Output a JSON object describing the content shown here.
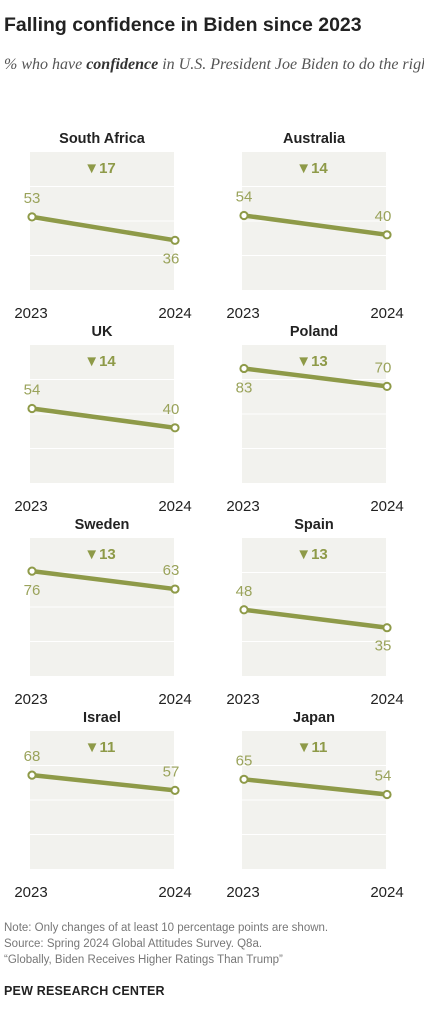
{
  "header": {
    "title": "Falling confidence in Biden since 2023",
    "subtitle_pre": "% who have ",
    "subtitle_bold": "confidence",
    "subtitle_post": " in U.S. President Joe Biden to do the right thing regarding world affairs"
  },
  "colors": {
    "line": "#8e9a48",
    "label": "#9aa35b",
    "change": "#8e9a48",
    "panel_bg": "#f2f2ee",
    "grid": "#ffffff"
  },
  "chart_data": [
    {
      "type": "line",
      "title": "South Africa",
      "x": [
        "2023",
        "2024"
      ],
      "values": [
        53,
        36
      ],
      "change": "▼17",
      "ylim": [
        0,
        100
      ]
    },
    {
      "type": "line",
      "title": "Australia",
      "x": [
        "2023",
        "2024"
      ],
      "values": [
        54,
        40
      ],
      "change": "▼14",
      "ylim": [
        0,
        100
      ]
    },
    {
      "type": "line",
      "title": "UK",
      "x": [
        "2023",
        "2024"
      ],
      "values": [
        54,
        40
      ],
      "change": "▼14",
      "ylim": [
        0,
        100
      ]
    },
    {
      "type": "line",
      "title": "Poland",
      "x": [
        "2023",
        "2024"
      ],
      "values": [
        83,
        70
      ],
      "change": "▼13",
      "ylim": [
        0,
        100
      ]
    },
    {
      "type": "line",
      "title": "Sweden",
      "x": [
        "2023",
        "2024"
      ],
      "values": [
        76,
        63
      ],
      "change": "▼13",
      "ylim": [
        0,
        100
      ]
    },
    {
      "type": "line",
      "title": "Spain",
      "x": [
        "2023",
        "2024"
      ],
      "values": [
        48,
        35
      ],
      "change": "▼13",
      "ylim": [
        0,
        100
      ]
    },
    {
      "type": "line",
      "title": "Israel",
      "x": [
        "2023",
        "2024"
      ],
      "values": [
        68,
        57
      ],
      "change": "▼11",
      "ylim": [
        0,
        100
      ]
    },
    {
      "type": "line",
      "title": "Japan",
      "x": [
        "2023",
        "2024"
      ],
      "values": [
        65,
        54
      ],
      "change": "▼11",
      "ylim": [
        0,
        100
      ]
    }
  ],
  "footer": {
    "note": "Note: Only changes of at least 10 percentage points are shown.",
    "source": "Source: Spring 2024 Global Attitudes Survey. Q8a.",
    "report": "“Globally, Biden Receives Higher Ratings Than Trump”",
    "org": "PEW RESEARCH CENTER"
  }
}
